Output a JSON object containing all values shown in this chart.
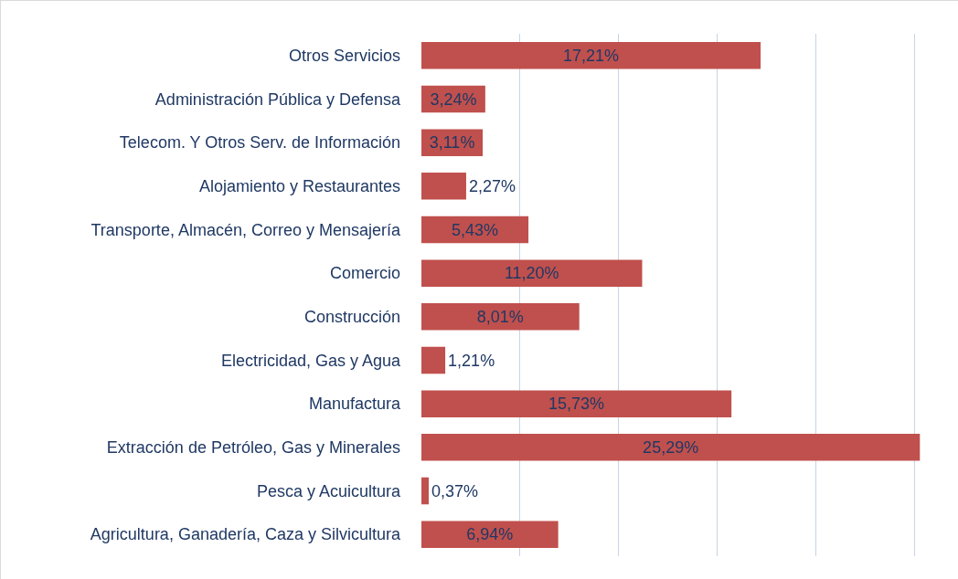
{
  "chart_data": {
    "type": "bar",
    "orientation": "horizontal",
    "categories": [
      "Otros Servicios",
      "Administración Pública y Defensa",
      "Telecom. Y Otros Serv. de Información",
      "Alojamiento y Restaurantes",
      "Transporte, Almacén, Correo y Mensajería",
      "Comercio",
      "Construcción",
      "Electricidad, Gas y Agua",
      "Manufactura",
      "Extracción de Petróleo, Gas y Minerales",
      "Pesca y Acuicultura",
      "Agricultura, Ganadería, Caza y Silvicultura"
    ],
    "values": [
      17.21,
      3.24,
      3.11,
      2.27,
      5.43,
      11.2,
      8.01,
      1.21,
      15.73,
      25.29,
      0.37,
      6.94
    ],
    "value_labels": [
      "17,21%",
      "3,24%",
      "3,11%",
      "2,27%",
      "5,43%",
      "11,20%",
      "8,01%",
      "1,21%",
      "15,73%",
      "25,29%",
      "0,37%",
      "6,94%"
    ],
    "color": "#c0504d",
    "tick_labels": "y",
    "grid": "x"
  }
}
